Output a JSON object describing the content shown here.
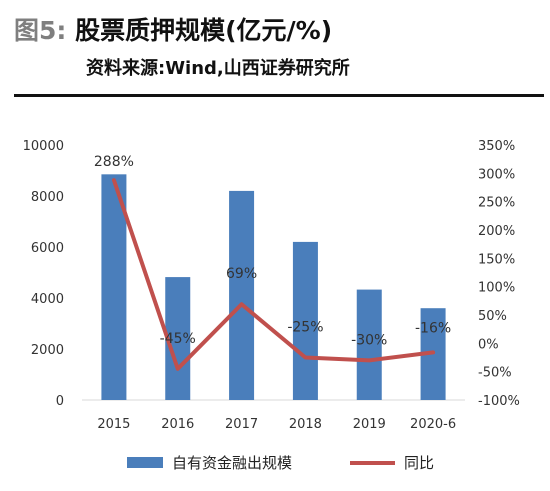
{
  "header": {
    "label": "图5:",
    "title": "股票质押规模(亿元/%)",
    "source": "资料来源:Wind,山西证券研究所"
  },
  "colors": {
    "bar": "#4a7ebb",
    "line": "#c0504d",
    "axis": "#d9d9d9"
  },
  "chart_data": {
    "type": "bar",
    "categories": [
      "2015",
      "2016",
      "2017",
      "2018",
      "2019",
      "2020-6"
    ],
    "series": [
      {
        "name": "自有资金融出规模",
        "type": "bar",
        "axis": "left",
        "values": [
          8850,
          4820,
          8200,
          6200,
          4330,
          3600
        ]
      },
      {
        "name": "同比",
        "type": "line",
        "axis": "right",
        "values": [
          288,
          -45,
          69,
          -25,
          -30,
          -16
        ],
        "labels": [
          "288%",
          "-45%",
          "69%",
          "-25%",
          "-30%",
          "-16%"
        ]
      }
    ],
    "y_left": {
      "min": 0,
      "max": 10000,
      "ticks": [
        "0",
        "2000",
        "4000",
        "6000",
        "8000",
        "10000"
      ]
    },
    "y_right": {
      "min": -100,
      "max": 350,
      "ticks": [
        "-100%",
        "-50%",
        "0%",
        "50%",
        "100%",
        "150%",
        "200%",
        "250%",
        "300%",
        "350%"
      ]
    },
    "legend_position": "bottom"
  }
}
